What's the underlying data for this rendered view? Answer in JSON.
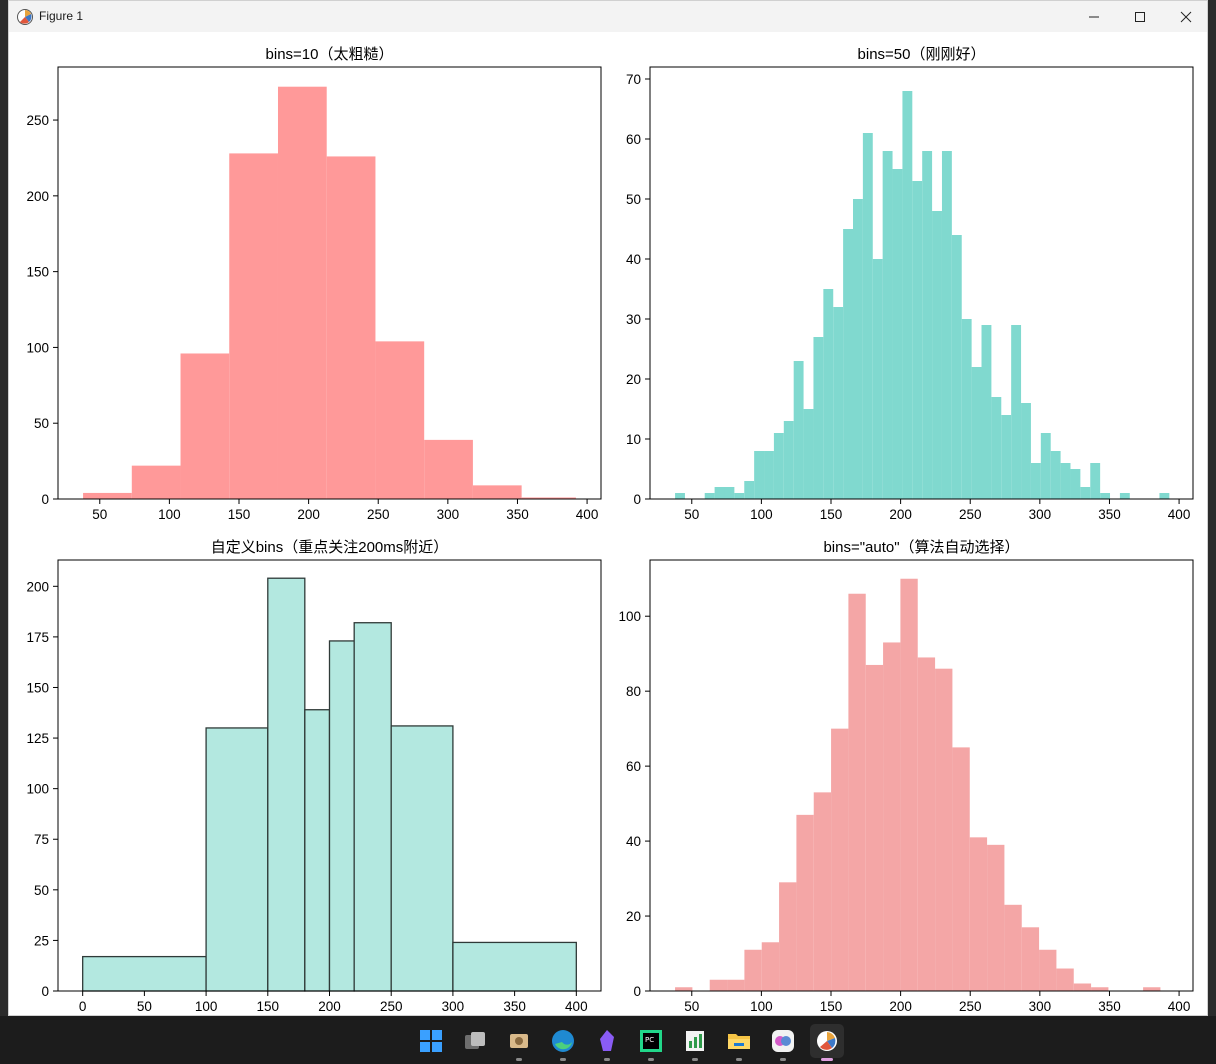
{
  "window": {
    "title": "Figure 1"
  },
  "taskbar": {
    "items": [
      {
        "name": "start-icon"
      },
      {
        "name": "task-view-icon"
      },
      {
        "name": "file-viewer-icon"
      },
      {
        "name": "edge-browser-icon"
      },
      {
        "name": "obsidian-icon"
      },
      {
        "name": "pycharm-icon"
      },
      {
        "name": "chart-app-icon"
      },
      {
        "name": "file-explorer-icon"
      },
      {
        "name": "brain-app-icon"
      },
      {
        "name": "matplotlib-figure-icon"
      }
    ]
  },
  "colors": {
    "coral": "#ff9999",
    "teal": "#80d9cf",
    "light_teal": "#b3e8e0",
    "salmon": "#f4a6a6",
    "edge": "#2f3a38"
  },
  "chart_data": [
    {
      "type": "bar",
      "title": "bins=10（太粗糙）",
      "bin_edges": [
        38,
        73,
        108,
        143,
        178,
        213,
        248,
        283,
        318,
        353,
        392
      ],
      "counts": [
        4,
        22,
        96,
        228,
        272,
        226,
        104,
        39,
        9,
        1
      ],
      "xlim": [
        20,
        410
      ],
      "ylim": [
        0,
        285
      ],
      "xticks": [
        50,
        100,
        150,
        200,
        250,
        300,
        350,
        400
      ],
      "yticks": [
        0,
        50,
        100,
        150,
        200,
        250
      ],
      "color": "#ff9999"
    },
    {
      "type": "bar",
      "title": "bins=50（刚刚好）",
      "bin_edges_start": 38,
      "bin_width": 7.1,
      "counts": [
        1,
        0,
        0,
        1,
        2,
        2,
        1,
        3,
        8,
        8,
        11,
        13,
        23,
        15,
        27,
        35,
        32,
        45,
        50,
        61,
        40,
        58,
        55,
        68,
        53,
        58,
        48,
        58,
        44,
        30,
        22,
        29,
        17,
        14,
        29,
        16,
        6,
        11,
        8,
        6,
        5,
        2,
        6,
        1,
        0,
        1,
        0,
        0,
        0,
        1
      ],
      "xlim": [
        20,
        410
      ],
      "ylim": [
        0,
        72
      ],
      "xticks": [
        50,
        100,
        150,
        200,
        250,
        300,
        350,
        400
      ],
      "yticks": [
        0,
        10,
        20,
        30,
        40,
        50,
        60,
        70
      ],
      "color": "#80d9cf"
    },
    {
      "type": "bar",
      "title": "自定义bins（重点关注200ms附近）",
      "bin_edges": [
        0,
        100,
        150,
        180,
        200,
        220,
        250,
        300,
        400
      ],
      "counts": [
        17,
        130,
        204,
        139,
        173,
        182,
        131,
        24
      ],
      "xlim": [
        -20,
        420
      ],
      "ylim": [
        0,
        213
      ],
      "xticks": [
        0,
        50,
        100,
        150,
        200,
        250,
        300,
        350,
        400
      ],
      "yticks": [
        0,
        25,
        50,
        75,
        100,
        125,
        150,
        175,
        200
      ],
      "color": "#b3e8e0"
    },
    {
      "type": "bar",
      "title": "bins=\"auto\"（算法自动选择）",
      "bin_edges_start": 38,
      "bin_width": 12.45,
      "counts": [
        1,
        0,
        3,
        3,
        11,
        13,
        29,
        47,
        53,
        70,
        106,
        87,
        93,
        110,
        89,
        86,
        65,
        41,
        39,
        23,
        17,
        11,
        6,
        2,
        1,
        0,
        0,
        1
      ],
      "xlim": [
        20,
        410
      ],
      "ylim": [
        0,
        115
      ],
      "xticks": [
        50,
        100,
        150,
        200,
        250,
        300,
        350,
        400
      ],
      "yticks": [
        0,
        20,
        40,
        60,
        80,
        100
      ],
      "color": "#f4a6a6"
    }
  ]
}
